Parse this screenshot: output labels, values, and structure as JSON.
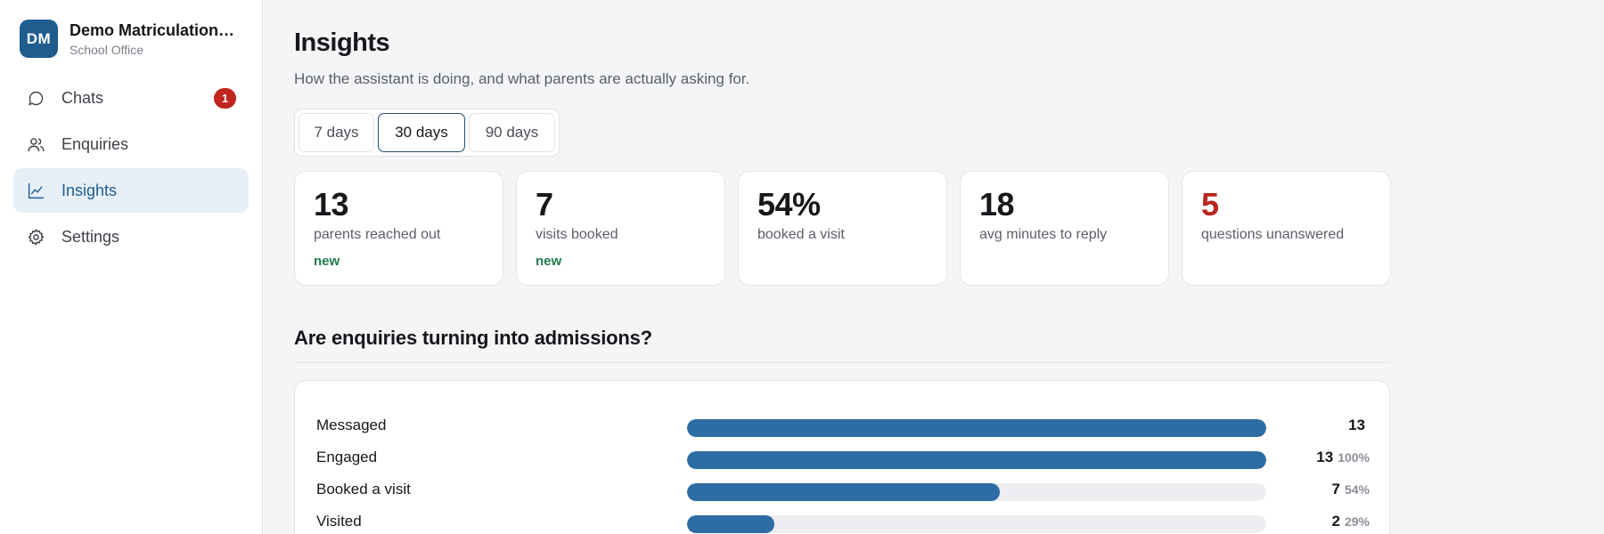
{
  "org": {
    "initials": "DM",
    "name": "Demo Matriculation S...",
    "subtitle": "School Office"
  },
  "nav": {
    "items": [
      {
        "label": "Chats",
        "icon": "chat-bubble-icon",
        "badge": "1",
        "active": false
      },
      {
        "label": "Enquiries",
        "icon": "users-icon",
        "active": false
      },
      {
        "label": "Insights",
        "icon": "line-chart-icon",
        "active": true
      },
      {
        "label": "Settings",
        "icon": "gear-icon",
        "active": false
      }
    ]
  },
  "page": {
    "title": "Insights",
    "subtitle": "How the assistant is doing, and what parents are actually asking for."
  },
  "range": {
    "options": [
      "7 days",
      "30 days",
      "90 days"
    ],
    "selected": "30 days"
  },
  "stats": [
    {
      "value": "13",
      "label": "parents reached out",
      "tag": "new"
    },
    {
      "value": "7",
      "label": "visits booked",
      "tag": "new"
    },
    {
      "value": "54%",
      "label": "booked a visit",
      "tag": ""
    },
    {
      "value": "18",
      "label": "avg minutes to reply",
      "tag": ""
    },
    {
      "value": "5",
      "label": "questions unanswered",
      "tag": "",
      "color": "#b8261f"
    }
  ],
  "funnel": {
    "title": "Are enquiries turning into admissions?",
    "rows": [
      {
        "label": "Messaged",
        "value": "13",
        "pct": "",
        "fraction": 1.0
      },
      {
        "label": "Engaged",
        "value": "13",
        "pct": "100%",
        "fraction": 1.0
      },
      {
        "label": "Booked a visit",
        "value": "7",
        "pct": "54%",
        "fraction": 0.54
      },
      {
        "label": "Visited",
        "value": "2",
        "pct": "29%",
        "fraction": 0.15
      }
    ]
  },
  "colors": {
    "accent": "#1f5d8f",
    "bar": "#2d6ca4",
    "badge": "#c0251f",
    "positive": "#237a4a",
    "negative": "#b8261f"
  }
}
